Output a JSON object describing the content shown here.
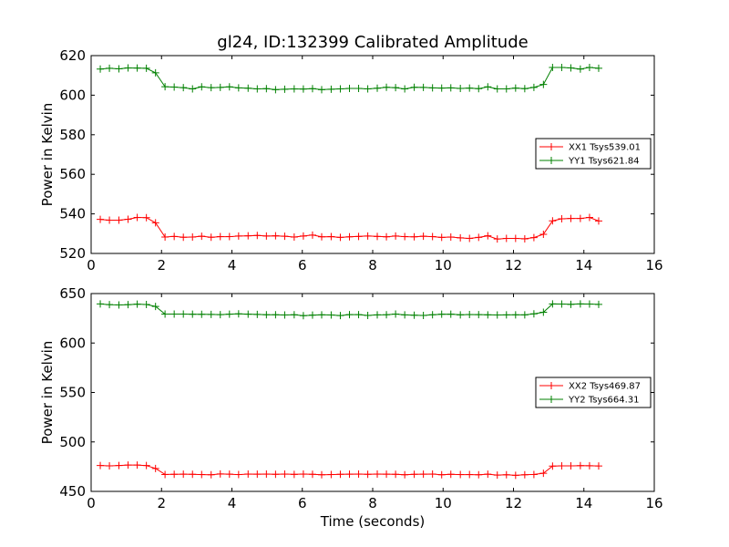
{
  "chart_data": [
    {
      "type": "line",
      "title": "gl24, ID:132399 Calibrated Amplitude",
      "xlabel": "",
      "ylabel": "Power in Kelvin",
      "xlim": [
        0,
        16
      ],
      "ylim": [
        520,
        620
      ],
      "xticks": [
        0,
        2,
        4,
        6,
        8,
        10,
        12,
        14,
        16
      ],
      "yticks": [
        520,
        540,
        560,
        580,
        600,
        620
      ],
      "grid": false,
      "legend": "center-right",
      "x": [
        0.26,
        0.52,
        0.79,
        1.05,
        1.31,
        1.57,
        1.83,
        2.1,
        2.36,
        2.62,
        2.88,
        3.14,
        3.41,
        3.67,
        3.93,
        4.19,
        4.46,
        4.72,
        4.98,
        5.24,
        5.5,
        5.77,
        6.03,
        6.29,
        6.55,
        6.82,
        7.08,
        7.34,
        7.6,
        7.86,
        8.13,
        8.39,
        8.65,
        8.91,
        9.18,
        9.44,
        9.7,
        9.96,
        10.22,
        10.49,
        10.75,
        11.01,
        11.27,
        11.54,
        11.8,
        12.06,
        12.32,
        12.58,
        12.85,
        13.11,
        13.37,
        13.63,
        13.9,
        14.16,
        14.42
      ],
      "series": [
        {
          "name": "XX1 Tsys539.01",
          "color": "#ff0000",
          "values": [
            537.2,
            536.8,
            536.8,
            537.3,
            538.2,
            538.1,
            535.5,
            528.3,
            528.6,
            528.2,
            528.3,
            528.7,
            528.2,
            528.5,
            528.5,
            528.8,
            528.9,
            529.1,
            528.8,
            528.9,
            528.7,
            528.3,
            528.8,
            529.3,
            528.4,
            528.5,
            528.1,
            528.4,
            528.6,
            528.8,
            528.6,
            528.4,
            528.8,
            528.5,
            528.4,
            528.7,
            528.5,
            528.1,
            528.3,
            527.9,
            527.6,
            528.1,
            528.9,
            527.3,
            527.6,
            527.6,
            527.4,
            528.0,
            529.7,
            536.5,
            537.5,
            537.7,
            537.7,
            538.2,
            536.4
          ]
        },
        {
          "name": "YY1 Tsys621.84",
          "color": "#008000",
          "values": [
            613.2,
            613.6,
            613.3,
            613.8,
            613.7,
            613.6,
            611.3,
            604.3,
            604.1,
            603.8,
            603.2,
            604.2,
            603.8,
            603.9,
            604.2,
            603.7,
            603.5,
            603.2,
            603.3,
            602.8,
            603.0,
            603.2,
            603.1,
            603.3,
            602.8,
            603.0,
            603.2,
            603.4,
            603.4,
            603.2,
            603.5,
            604.0,
            603.8,
            603.2,
            604.0,
            603.9,
            603.7,
            603.6,
            603.7,
            603.4,
            603.6,
            603.3,
            604.2,
            603.2,
            603.2,
            603.6,
            603.3,
            603.9,
            605.4,
            614.0,
            614.0,
            613.8,
            613.2,
            614.0,
            613.6
          ]
        }
      ]
    },
    {
      "type": "line",
      "title": "",
      "xlabel": "Time (seconds)",
      "ylabel": "Power in Kelvin",
      "xlim": [
        0,
        16
      ],
      "ylim": [
        450,
        650
      ],
      "xticks": [
        0,
        2,
        4,
        6,
        8,
        10,
        12,
        14,
        16
      ],
      "yticks": [
        450,
        500,
        550,
        600,
        650
      ],
      "grid": false,
      "legend": "center-right",
      "x": [
        0.26,
        0.52,
        0.79,
        1.05,
        1.31,
        1.57,
        1.83,
        2.1,
        2.36,
        2.62,
        2.88,
        3.14,
        3.41,
        3.67,
        3.93,
        4.19,
        4.46,
        4.72,
        4.98,
        5.24,
        5.5,
        5.77,
        6.03,
        6.29,
        6.55,
        6.82,
        7.08,
        7.34,
        7.6,
        7.86,
        8.13,
        8.39,
        8.65,
        8.91,
        9.18,
        9.44,
        9.7,
        9.96,
        10.22,
        10.49,
        10.75,
        11.01,
        11.27,
        11.54,
        11.8,
        12.06,
        12.32,
        12.58,
        12.85,
        13.11,
        13.37,
        13.63,
        13.9,
        14.16,
        14.42
      ],
      "series": [
        {
          "name": "XX2 Tsys469.87",
          "color": "#ff0000",
          "values": [
            476.2,
            475.8,
            476.2,
            476.6,
            476.6,
            476.1,
            473.2,
            467.1,
            467.3,
            467.4,
            467.3,
            467.0,
            466.8,
            467.6,
            467.4,
            467.0,
            467.5,
            467.4,
            467.5,
            467.3,
            467.5,
            467.2,
            467.5,
            467.3,
            466.8,
            467.0,
            467.3,
            467.4,
            467.5,
            467.3,
            467.5,
            467.4,
            467.3,
            466.8,
            467.3,
            467.4,
            467.5,
            466.8,
            467.3,
            467.0,
            467.0,
            466.8,
            467.4,
            466.5,
            466.8,
            466.2,
            466.8,
            467.1,
            468.3,
            475.6,
            475.8,
            475.8,
            476.0,
            475.9,
            475.7
          ]
        },
        {
          "name": "YY2 Tsys664.31",
          "color": "#008000",
          "values": [
            639.5,
            638.8,
            638.5,
            638.8,
            639.3,
            638.9,
            637.0,
            629.3,
            629.3,
            629.3,
            629.1,
            629.0,
            628.9,
            628.7,
            629.2,
            629.5,
            629.2,
            628.9,
            628.6,
            628.6,
            628.3,
            628.6,
            627.7,
            628.2,
            628.5,
            628.3,
            627.8,
            628.7,
            628.7,
            627.9,
            628.4,
            628.6,
            629.3,
            628.4,
            628.1,
            627.9,
            628.6,
            629.1,
            629.2,
            628.5,
            628.8,
            628.7,
            628.5,
            628.3,
            628.4,
            628.5,
            628.4,
            629.5,
            631.1,
            639.5,
            639.4,
            639.1,
            639.5,
            639.4,
            639.0
          ]
        }
      ]
    }
  ]
}
